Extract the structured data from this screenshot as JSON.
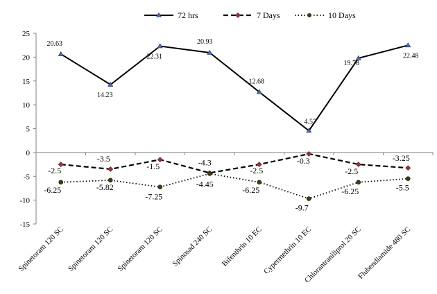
{
  "chart_data": {
    "type": "line",
    "categories": [
      "Spinetoram 120 SC",
      "Spinetoram 120 SC",
      "Spinetoram 120 SC",
      "Spinosad 240 SC",
      "Bifenthrin 10 EC",
      "Cypermethrin 10 EC",
      "Chlorantraniliprol 20 SC",
      "Flubendiamide 480 SC"
    ],
    "ylim": [
      -15,
      25
    ],
    "yticks": [
      "25",
      "20",
      "15",
      "10",
      "5",
      "0",
      "-5",
      "-10",
      "-15"
    ],
    "legend_position": "top",
    "series": [
      {
        "name": "72 hrs",
        "values": [
          20.63,
          14.23,
          22.31,
          20.93,
          12.68,
          4.57,
          19.78,
          22.48
        ],
        "labels": [
          "20.63",
          "14.23",
          "22.31",
          "20.93",
          "12.68",
          "4.57",
          "19.78",
          "22.48"
        ],
        "line_color": "#000000",
        "marker_color": "#4a6fb5",
        "style": "solid"
      },
      {
        "name": "7 Days",
        "values": [
          -2.5,
          -3.5,
          -1.5,
          -4.3,
          -2.5,
          -0.3,
          -2.5,
          -3.25
        ],
        "labels": [
          "-2.5",
          "-3.5",
          "-1.5",
          "-4.3",
          "-2.5",
          "-0.3",
          "-2.5",
          "-3.25"
        ],
        "line_color": "#000000",
        "marker_color": "#a0303a",
        "style": "dashed"
      },
      {
        "name": "10 Days",
        "values": [
          -6.25,
          -5.82,
          -7.25,
          -4.45,
          -6.25,
          -9.7,
          -6.25,
          -5.5
        ],
        "labels": [
          "-6.25",
          "-5.82",
          "-7.25",
          "-4.45",
          "-6.25",
          "-9.7",
          "-6.25",
          "-5.5"
        ],
        "line_color": "#000000",
        "marker_color": "#3d3d10",
        "style": "dotted"
      }
    ]
  }
}
